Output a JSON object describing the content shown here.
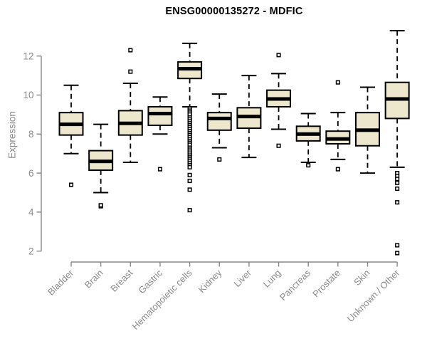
{
  "chart_data": {
    "type": "boxplot",
    "title": "ENSG00000135272 - MDFIC",
    "ylabel": "Expression",
    "xlabel": "",
    "yticks": [
      2,
      4,
      6,
      8,
      10,
      12
    ],
    "ylim": [
      1.4,
      13.5
    ],
    "grid": false,
    "legend": "none",
    "categories": [
      "Bladder",
      "Brain",
      "Breast",
      "Gastric",
      "Hematopoietic cells",
      "Kidney",
      "Liver",
      "Lung",
      "Pancreas",
      "Prostate",
      "Skin",
      "Unknown / Other"
    ],
    "series": [
      {
        "category": "Bladder",
        "low": 7.0,
        "q1": 7.95,
        "median": 8.5,
        "q3": 9.1,
        "high": 10.5,
        "outliers": [
          5.4
        ]
      },
      {
        "category": "Brain",
        "low": 5.0,
        "q1": 6.15,
        "median": 6.6,
        "q3": 7.15,
        "high": 8.5,
        "outliers": [
          4.3,
          4.35
        ]
      },
      {
        "category": "Breast",
        "low": 6.55,
        "q1": 7.95,
        "median": 8.55,
        "q3": 9.2,
        "high": 10.6,
        "outliers": [
          12.3,
          11.2
        ]
      },
      {
        "category": "Gastric",
        "low": 8.0,
        "q1": 8.45,
        "median": 9.05,
        "q3": 9.4,
        "high": 9.9,
        "outliers": [
          6.2
        ]
      },
      {
        "category": "Hematopoietic cells",
        "low": 9.4,
        "q1": 10.85,
        "median": 11.35,
        "q3": 11.7,
        "high": 12.65,
        "outliers": [
          9.3,
          9.2,
          9.1,
          9.0,
          8.85,
          8.75,
          8.65,
          8.55,
          8.45,
          8.35,
          8.25,
          8.15,
          8.05,
          7.95,
          7.85,
          7.75,
          7.65,
          7.55,
          7.45,
          7.3,
          7.2,
          7.1,
          7.0,
          6.9,
          6.8,
          6.7,
          6.6,
          6.5,
          6.4,
          6.3,
          5.9,
          5.6,
          5.15,
          4.1
        ]
      },
      {
        "category": "Kidney",
        "low": 7.3,
        "q1": 8.2,
        "median": 8.8,
        "q3": 9.1,
        "high": 10.05,
        "outliers": [
          6.7
        ]
      },
      {
        "category": "Liver",
        "low": 6.8,
        "q1": 8.3,
        "median": 8.9,
        "q3": 9.35,
        "high": 11.0,
        "outliers": []
      },
      {
        "category": "Lung",
        "low": 8.25,
        "q1": 9.4,
        "median": 9.8,
        "q3": 10.25,
        "high": 11.1,
        "outliers": [
          12.05,
          7.4
        ]
      },
      {
        "category": "Pancreas",
        "low": 6.55,
        "q1": 7.65,
        "median": 8.0,
        "q3": 8.4,
        "high": 9.05,
        "outliers": [
          6.4
        ]
      },
      {
        "category": "Prostate",
        "low": 6.7,
        "q1": 7.5,
        "median": 7.75,
        "q3": 8.15,
        "high": 9.1,
        "outliers": [
          10.65,
          6.2
        ]
      },
      {
        "category": "Skin",
        "low": 6.0,
        "q1": 7.4,
        "median": 8.2,
        "q3": 9.1,
        "high": 10.4,
        "outliers": []
      },
      {
        "category": "Unknown / Other",
        "low": 6.3,
        "q1": 8.8,
        "median": 9.8,
        "q3": 10.65,
        "high": 13.3,
        "outliers": [
          6.0,
          5.85,
          5.7,
          5.5,
          5.2,
          4.5,
          2.3,
          1.9
        ]
      }
    ],
    "style": {
      "box_fill": "#EDE8CD",
      "box_stroke": "#000000",
      "median_color": "#000000",
      "whisker_color": "#000000",
      "outlier_color": "#000000",
      "axis_color": "#878787",
      "label_color": "#8a8a8a",
      "title_color": "#000000",
      "background": "#ffffff"
    }
  }
}
